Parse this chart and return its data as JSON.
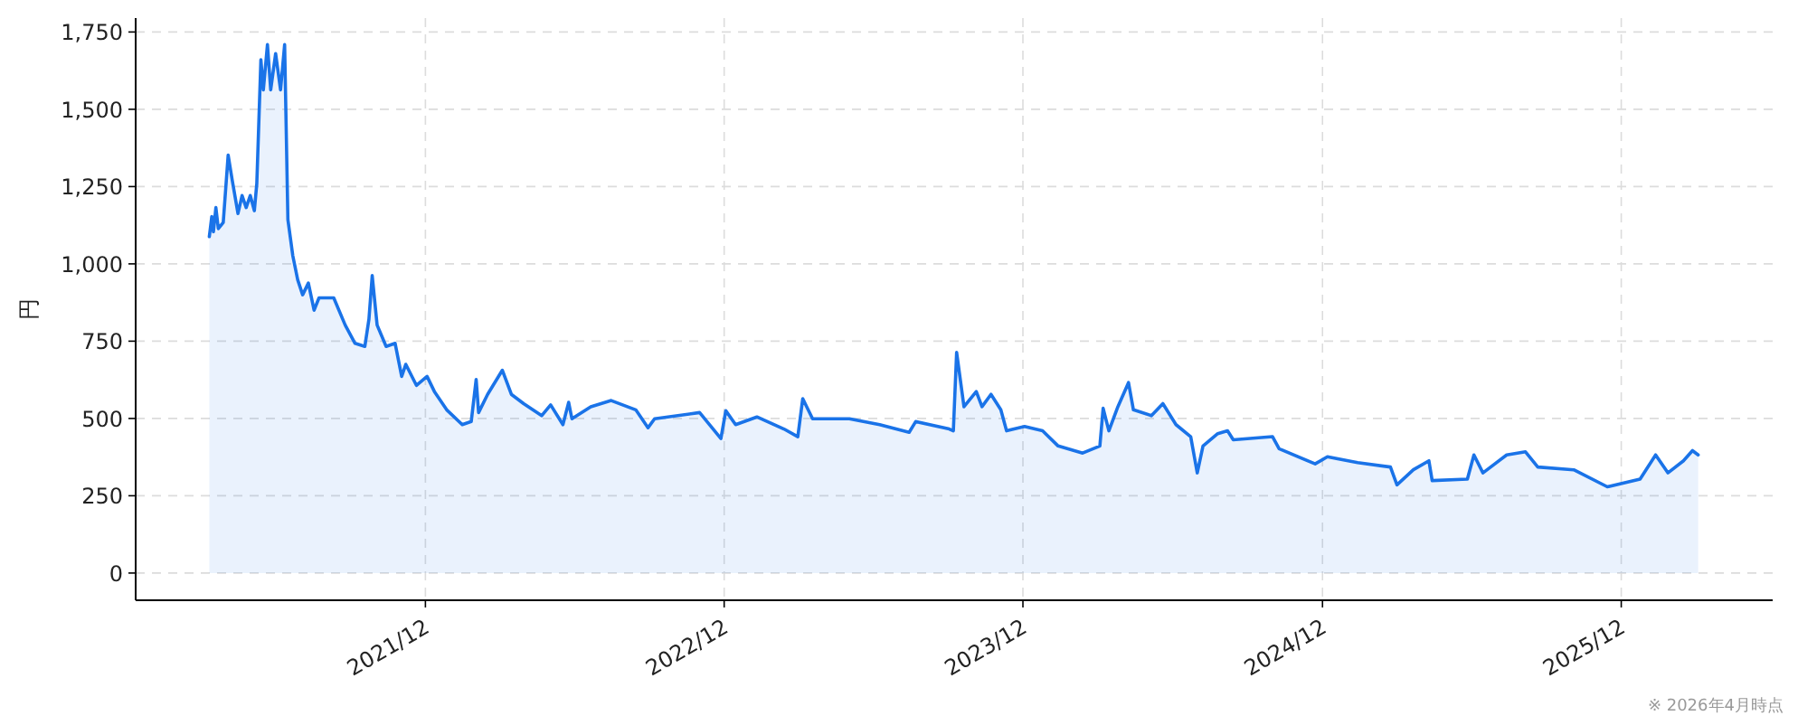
{
  "chart_data": {
    "type": "area",
    "ylabel": "円",
    "annotations": [
      "※ 2026年4月時点"
    ],
    "xlim": [
      "2020-12-12",
      "2026-06-04"
    ],
    "ylim": [
      -88,
      1795
    ],
    "xticks": [
      {
        "value": "2021-12-01",
        "label": "2021/12"
      },
      {
        "value": "2022-12-01",
        "label": "2022/12"
      },
      {
        "value": "2023-12-01",
        "label": "2023/12"
      },
      {
        "value": "2024-12-01",
        "label": "2024/12"
      },
      {
        "value": "2025-12-01",
        "label": "2025/12"
      }
    ],
    "yticks": [
      {
        "value": 0,
        "label": "0"
      },
      {
        "value": 250,
        "label": "250"
      },
      {
        "value": 500,
        "label": "500"
      },
      {
        "value": 750,
        "label": "750"
      },
      {
        "value": 1000,
        "label": "1,000"
      },
      {
        "value": 1250,
        "label": "1,250"
      },
      {
        "value": 1500,
        "label": "1,500"
      },
      {
        "value": 1750,
        "label": "1,750"
      }
    ],
    "grid": true,
    "line_style": "solid",
    "series": [
      {
        "color": "#1a73e8",
        "x": [
          "2021-03-12",
          "2021-03-15",
          "2021-03-17",
          "2021-03-20",
          "2021-03-23",
          "2021-03-29",
          "2021-04-04",
          "2021-04-09",
          "2021-04-16",
          "2021-04-21",
          "2021-04-26",
          "2021-05-01",
          "2021-05-06",
          "2021-05-09",
          "2021-05-14",
          "2021-05-17",
          "2021-05-22",
          "2021-05-26",
          "2021-06-01",
          "2021-06-07",
          "2021-06-12",
          "2021-06-16",
          "2021-06-22",
          "2021-06-28",
          "2021-07-04",
          "2021-07-11",
          "2021-07-18",
          "2021-07-24",
          "2021-08-11",
          "2021-08-25",
          "2021-09-06",
          "2021-09-18",
          "2021-09-23",
          "2021-09-27",
          "2021-10-03",
          "2021-10-14",
          "2021-10-25",
          "2021-11-02",
          "2021-11-07",
          "2021-11-20",
          "2021-12-03",
          "2021-12-12",
          "2021-12-27",
          "2022-01-15",
          "2022-01-26",
          "2022-02-01",
          "2022-02-04",
          "2022-02-15",
          "2022-03-05",
          "2022-03-16",
          "2022-03-31",
          "2022-04-22",
          "2022-05-03",
          "2022-05-18",
          "2022-05-25",
          "2022-05-29",
          "2022-06-21",
          "2022-07-16",
          "2022-08-15",
          "2022-08-30",
          "2022-09-07",
          "2022-11-01",
          "2022-11-27",
          "2022-12-03",
          "2022-12-15",
          "2023-01-10",
          "2023-02-12",
          "2023-03-01",
          "2023-03-07",
          "2023-03-19",
          "2023-05-03",
          "2023-06-09",
          "2023-07-15",
          "2023-07-23",
          "2023-09-02",
          "2023-09-07",
          "2023-09-11",
          "2023-09-20",
          "2023-10-05",
          "2023-10-12",
          "2023-10-23",
          "2023-11-04",
          "2023-11-11",
          "2023-12-03",
          "2023-12-25",
          "2024-01-13",
          "2024-02-12",
          "2024-03-04",
          "2024-03-08",
          "2024-03-15",
          "2024-03-26",
          "2024-04-08",
          "2024-04-14",
          "2024-05-06",
          "2024-05-20",
          "2024-06-05",
          "2024-06-23",
          "2024-07-01",
          "2024-07-08",
          "2024-07-26",
          "2024-08-07",
          "2024-08-14",
          "2024-10-01",
          "2024-10-09",
          "2024-11-22",
          "2024-12-07",
          "2025-01-13",
          "2025-02-22",
          "2025-03-02",
          "2025-03-22",
          "2025-04-10",
          "2025-04-14",
          "2025-05-27",
          "2025-06-04",
          "2025-06-15",
          "2025-07-14",
          "2025-08-06",
          "2025-08-21",
          "2025-10-04",
          "2025-11-14",
          "2025-12-24",
          "2026-01-12",
          "2026-01-27",
          "2026-02-15",
          "2026-02-26",
          "2026-03-05"
        ],
        "values": [
          1088,
          1153,
          1104,
          1182,
          1114,
          1134,
          1352,
          1270,
          1163,
          1221,
          1182,
          1221,
          1172,
          1260,
          1660,
          1563,
          1709,
          1563,
          1680,
          1563,
          1709,
          1143,
          1026,
          948,
          900,
          938,
          850,
          890,
          890,
          802,
          743,
          733,
          821,
          962,
          802,
          733,
          743,
          636,
          675,
          607,
          636,
          587,
          528,
          480,
          490,
          626,
          519,
          578,
          656,
          578,
          548,
          509,
          544,
          480,
          552,
          499,
          538,
          558,
          528,
          470,
          499,
          519,
          435,
          525,
          480,
          505,
          466,
          441,
          564,
          499,
          499,
          480,
          455,
          490,
          466,
          460,
          714,
          538,
          587,
          538,
          578,
          528,
          460,
          474,
          460,
          411,
          388,
          411,
          533,
          460,
          538,
          616,
          528,
          509,
          548,
          480,
          441,
          324,
          411,
          451,
          460,
          431,
          441,
          402,
          353,
          376,
          357,
          343,
          285,
          334,
          363,
          299,
          304,
          382,
          324,
          382,
          392,
          343,
          334,
          279,
          304,
          382,
          324,
          363,
          396,
          382
        ]
      }
    ]
  }
}
